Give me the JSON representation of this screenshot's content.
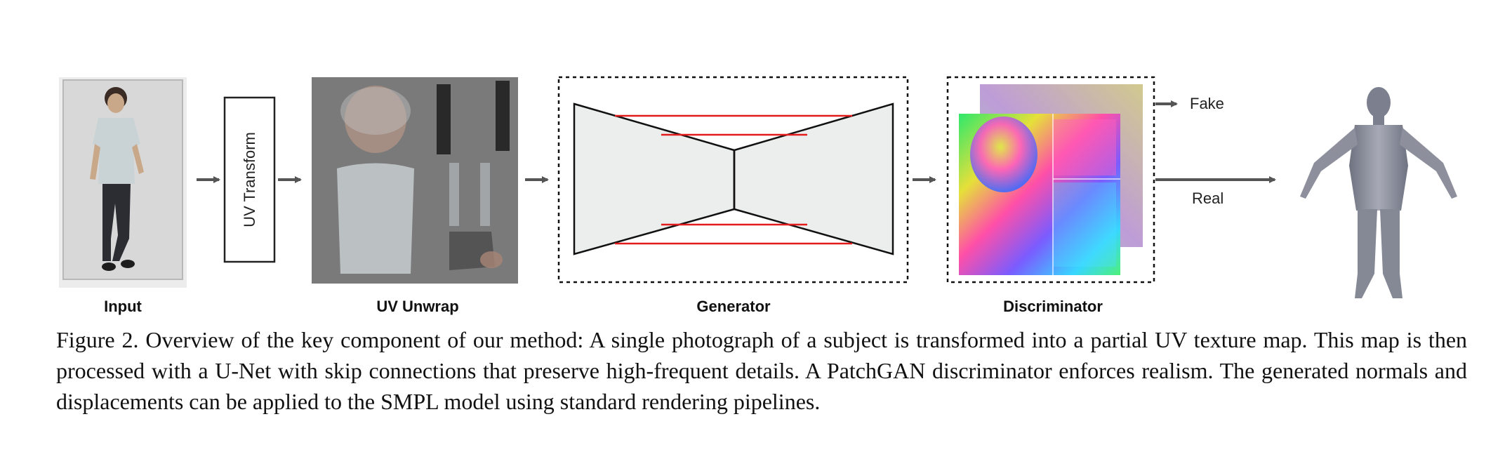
{
  "figure": {
    "labels": {
      "input": "Input",
      "uv_transform": "UV Transform",
      "uv_unwrap": "UV Unwrap",
      "generator": "Generator",
      "discriminator": "Discriminator",
      "fake": "Fake",
      "real": "Real"
    }
  },
  "caption": {
    "prefix": "Figure 2.",
    "text": "Overview of the key component of our method: A single photograph of a subject is transformed into a partial UV texture map. This map is then processed with a U-Net with skip connections that preserve high-frequent details. A PatchGAN discriminator enforces realism. The generated normals and displacements can be applied to the SMPL model using standard rendering pipelines."
  }
}
